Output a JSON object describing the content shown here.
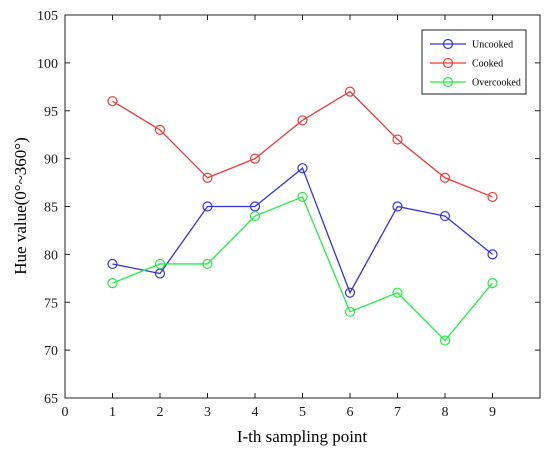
{
  "chart_data": {
    "type": "line",
    "xlabel": "I-th sampling point",
    "ylabel": "Hue value(0°~360°)",
    "xlim": [
      0,
      10
    ],
    "ylim": [
      65,
      105
    ],
    "xticks": [
      "0",
      "1",
      "2",
      "3",
      "4",
      "5",
      "6",
      "7",
      "8",
      "9",
      ""
    ],
    "yticks": [
      "65",
      "70",
      "75",
      "80",
      "85",
      "90",
      "95",
      "100",
      "105"
    ],
    "x": [
      1,
      2,
      3,
      4,
      5,
      6,
      7,
      8,
      9
    ],
    "grid": false,
    "legend_position": "top-right",
    "series": [
      {
        "name": "Uncooked",
        "color": "#3333dd",
        "values": [
          79,
          78,
          85,
          85,
          89,
          76,
          85,
          84,
          80
        ]
      },
      {
        "name": "Cooked",
        "color": "#ee3b3b",
        "values": [
          96,
          93,
          88,
          90,
          94,
          97,
          92,
          88,
          86
        ]
      },
      {
        "name": "Overcooked",
        "color": "#22ee44",
        "values": [
          77,
          79,
          79,
          84,
          86,
          74,
          76,
          71,
          77
        ]
      }
    ]
  }
}
